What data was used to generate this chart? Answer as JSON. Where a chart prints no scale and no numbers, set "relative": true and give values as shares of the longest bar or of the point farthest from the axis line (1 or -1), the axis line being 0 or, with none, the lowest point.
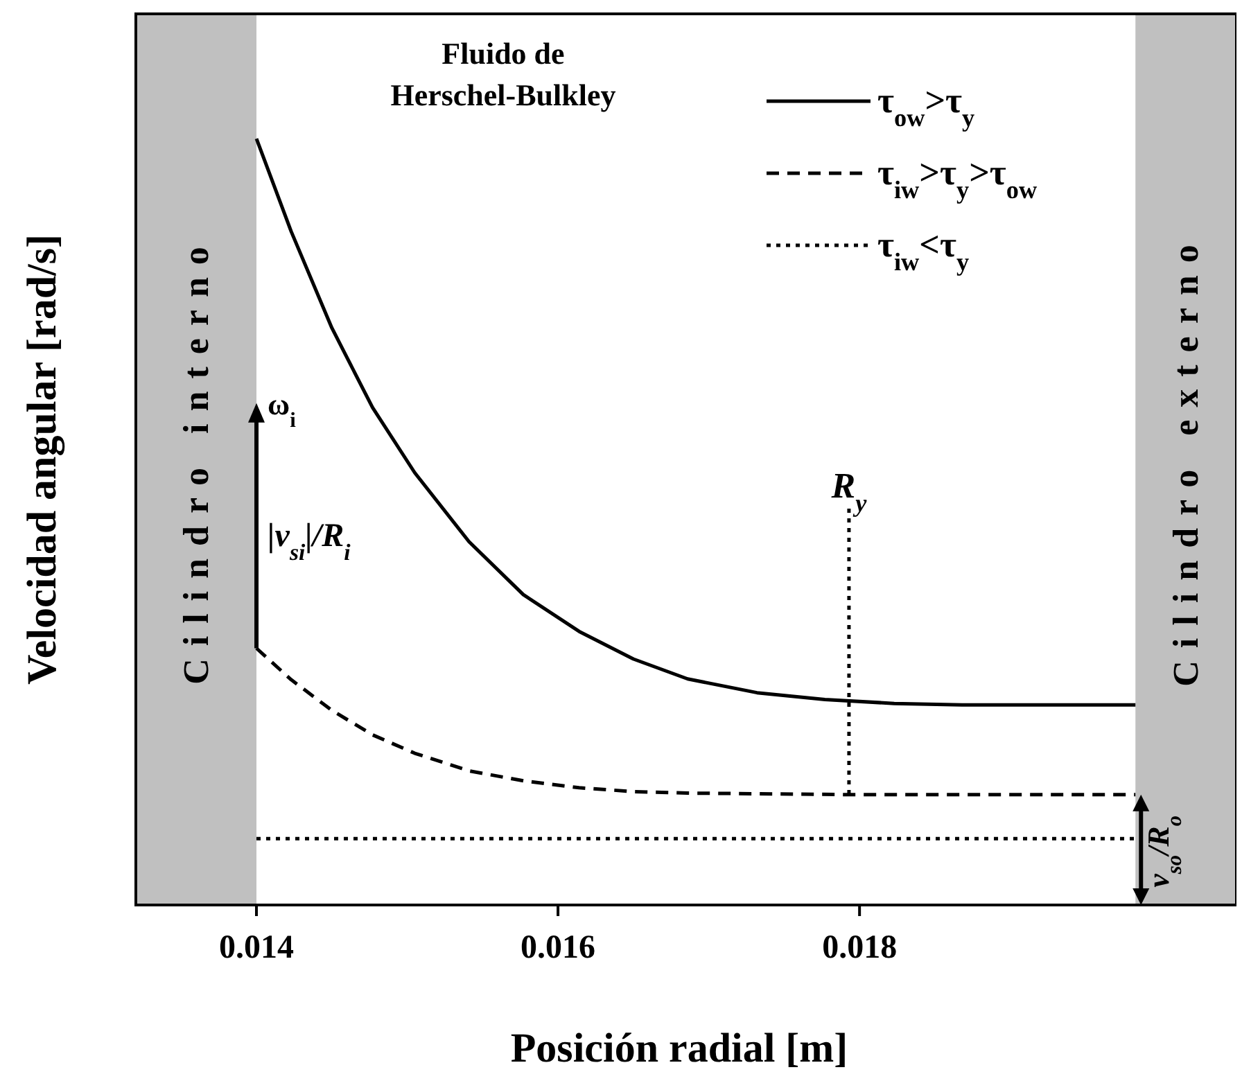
{
  "chart_data": {
    "type": "line",
    "relative": true,
    "xlabel": "Posición radial [m]",
    "ylabel": "Velocidad angular [rad/s]",
    "xlim": [
      0.0132,
      0.0205
    ],
    "xticks": [
      0.014,
      0.016,
      0.018
    ],
    "legend": "top right",
    "tick_labels": "x",
    "series": [
      {
        "name": "τ$_{ow}$>τ$_{y}$",
        "color": "#000000",
        "line_style": "solid",
        "x": [
          0.014,
          0.01423,
          0.0145,
          0.01477,
          0.01505,
          0.01541,
          0.01577,
          0.01614,
          0.0165,
          0.01686,
          0.01732,
          0.01777,
          0.01823,
          0.01868,
          0.01983
        ],
        "values": [
          1,
          0.879,
          0.753,
          0.649,
          0.564,
          0.474,
          0.405,
          0.357,
          0.321,
          0.295,
          0.277,
          0.268,
          0.263,
          0.261,
          0.261
        ]
      },
      {
        "name": "τ$_{iw}$>τ$_{y}$>τ$_{ow}$",
        "color": "#000000",
        "line_style": "dashed",
        "x": [
          0.014,
          0.01423,
          0.0145,
          0.01477,
          0.01505,
          0.01541,
          0.01577,
          0.01614,
          0.0165,
          0.01686,
          0.01793,
          0.01983
        ],
        "values": [
          0.335,
          0.294,
          0.254,
          0.222,
          0.198,
          0.175,
          0.162,
          0.153,
          0.148,
          0.146,
          0.144,
          0.144
        ]
      },
      {
        "name": "τ$_{iw}$<τ$_{y}$",
        "color": "#000000",
        "line_style": "dotted",
        "x": [
          0.014,
          0.01983
        ],
        "values": [
          0.0865,
          0.0865
        ]
      }
    ],
    "ref_lines": [
      {
        "axis": "x",
        "value": 0.01793,
        "label": "R$_{y}$",
        "line_style": "dotted"
      }
    ],
    "bands": [
      {
        "axis": "x",
        "from": 0.0132,
        "to": 0.014,
        "label": "Cilindro interno",
        "color": "#c0c0c0"
      },
      {
        "axis": "x",
        "from": 0.01983,
        "to": 0.0205,
        "label": "Cilindro externo",
        "color": "#c0c0c0"
      }
    ],
    "annotations": [
      "Fluido de Herschel-Bulkley",
      "ω$_{i}$",
      "|v$_{si}$|/R$_{i}$",
      "v$_{so}$/R$_{o}$"
    ]
  }
}
